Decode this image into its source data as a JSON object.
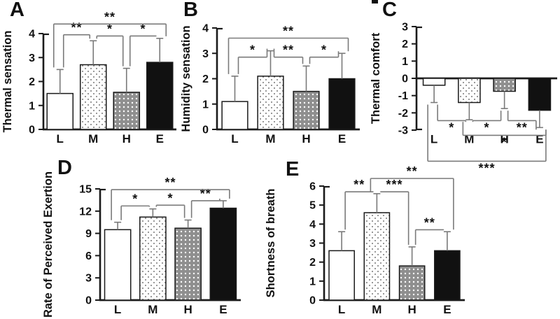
{
  "figure": {
    "background": "#ffffff",
    "colors": {
      "axis": "#1a1a1a",
      "bar_outline": "#1a1a1a",
      "error_bar": "#7a7a7a",
      "bracket": "#7a7a7a",
      "star": "#111111",
      "gray_bar_fill": "#8f8f8f",
      "dot_on_white": "#777777",
      "dot_on_gray": "#ffffff",
      "black_bar_fill": "#111111",
      "white_bar_fill": "#ffffff"
    }
  },
  "chart_data": [
    {
      "id": "A",
      "type": "bar",
      "title": "",
      "xlabel": "",
      "ylabel": "Thermal sensation",
      "categories": [
        "L",
        "M",
        "H",
        "E"
      ],
      "values": [
        1.5,
        2.7,
        1.55,
        2.8
      ],
      "errors": [
        1.0,
        1.0,
        1.0,
        1.0
      ],
      "ylim": [
        0,
        4
      ],
      "yticks": [
        4,
        3,
        2,
        1,
        0
      ],
      "bar_styles": [
        "white",
        "dots",
        "gray-dots",
        "black"
      ],
      "significance": [
        {
          "from": "L",
          "to": "M",
          "label": "**",
          "level": 3.95
        },
        {
          "from": "M",
          "to": "H",
          "label": "*",
          "level": 3.9
        },
        {
          "from": "H",
          "to": "E",
          "label": "*",
          "level": 3.9
        },
        {
          "from": "L",
          "to": "E",
          "label": "**",
          "level": 4.4
        }
      ]
    },
    {
      "id": "B",
      "type": "bar",
      "title": "",
      "xlabel": "",
      "ylabel": "Humidity sensation",
      "categories": [
        "L",
        "M",
        "H",
        "E"
      ],
      "values": [
        1.1,
        2.1,
        1.5,
        2.0
      ],
      "errors": [
        1.0,
        1.0,
        1.0,
        1.0
      ],
      "ylim": [
        0,
        4
      ],
      "yticks": [
        4,
        3,
        2,
        1,
        0
      ],
      "bar_styles": [
        "white",
        "dots",
        "gray-dots",
        "black"
      ],
      "significance": [
        {
          "from": "L",
          "to": "M",
          "label": "*",
          "level": 2.85
        },
        {
          "from": "M",
          "to": "H",
          "label": "**",
          "level": 2.85
        },
        {
          "from": "H",
          "to": "E",
          "label": "*",
          "level": 2.85
        },
        {
          "from": "L",
          "to": "E",
          "label": "**",
          "level": 3.6
        }
      ]
    },
    {
      "id": "C",
      "type": "bar",
      "title": "",
      "xlabel": "",
      "ylabel": "Thermal comfort",
      "categories": [
        "L",
        "M",
        "H",
        "E"
      ],
      "values": [
        -0.4,
        -1.4,
        -0.75,
        -1.85
      ],
      "errors": [
        1.0,
        1.0,
        1.0,
        1.0
      ],
      "ylim": [
        -3,
        3
      ],
      "yticks": [
        3,
        2,
        1,
        0,
        -1,
        -2,
        -3
      ],
      "bar_styles": [
        "white",
        "dots",
        "gray-dots",
        "black"
      ],
      "significance": [
        {
          "from": "L",
          "to": "M",
          "label": "*",
          "level": -2.45
        },
        {
          "from": "M",
          "to": "H",
          "label": "*",
          "level": -2.45
        },
        {
          "from": "H",
          "to": "E",
          "label": "**",
          "level": -2.45
        },
        {
          "from": "M",
          "to": "E",
          "label": "*",
          "level": -3.3
        },
        {
          "from": "L",
          "to": "E",
          "label": "***",
          "level": -4.8
        }
      ]
    },
    {
      "id": "D",
      "type": "bar",
      "title": "",
      "xlabel": "",
      "ylabel": "Rate of Perceived Exertion",
      "categories": [
        "L",
        "M",
        "H",
        "E"
      ],
      "values": [
        9.5,
        11.2,
        9.7,
        12.4
      ],
      "errors": [
        1.0,
        1.1,
        1.1,
        1.0
      ],
      "ylim": [
        0,
        15
      ],
      "yticks": [
        15,
        12,
        9,
        6,
        3,
        0
      ],
      "bar_styles": [
        "white",
        "dots",
        "gray-dots",
        "black"
      ],
      "significance": [
        {
          "from": "L",
          "to": "M",
          "label": "*",
          "level": 12.7
        },
        {
          "from": "M",
          "to": "H",
          "label": "*",
          "level": 12.8
        },
        {
          "from": "H",
          "to": "E",
          "label": "**",
          "level": 13.4
        },
        {
          "from": "L",
          "to": "E",
          "label": "**",
          "level": 14.9
        }
      ]
    },
    {
      "id": "E",
      "type": "bar",
      "title": "",
      "xlabel": "",
      "ylabel": "Shortness of breath",
      "categories": [
        "L",
        "M",
        "H",
        "E"
      ],
      "values": [
        2.6,
        4.6,
        1.8,
        2.6
      ],
      "errors": [
        1.0,
        1.0,
        1.0,
        1.0
      ],
      "ylim": [
        0,
        6
      ],
      "yticks": [
        6,
        5,
        4,
        3,
        2,
        1,
        0
      ],
      "bar_styles": [
        "white",
        "dots",
        "gray-dots",
        "black"
      ],
      "significance": [
        {
          "from": "L",
          "to": "M",
          "label": "**",
          "level": 5.7
        },
        {
          "from": "M",
          "to": "H",
          "label": "***",
          "level": 5.7
        },
        {
          "from": "H",
          "to": "E",
          "label": "**",
          "level": 3.7
        },
        {
          "from": "M",
          "to": "E",
          "label": "**",
          "level": 6.4
        }
      ]
    }
  ]
}
